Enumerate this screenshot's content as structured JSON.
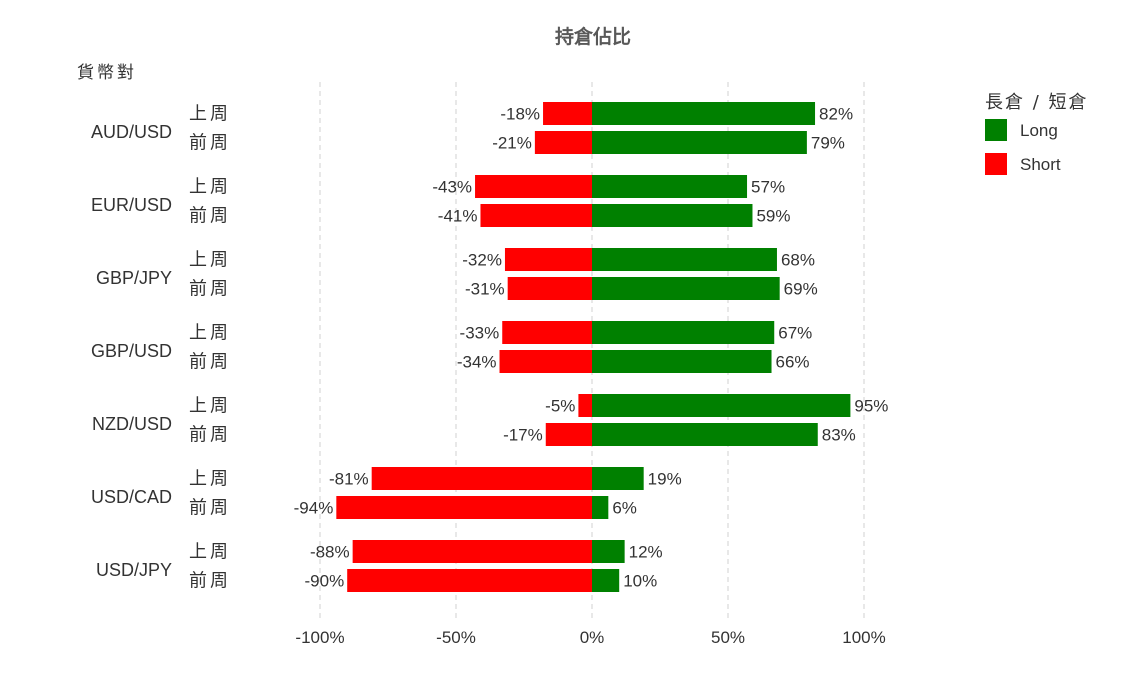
{
  "chart_data": {
    "type": "bar",
    "orientation": "horizontal-diverging",
    "title": "持倉佔比",
    "ylabel": "貨幣對",
    "xlim": [
      -100,
      100
    ],
    "xticks": [
      -100,
      -50,
      0,
      50,
      100
    ],
    "xtick_labels": [
      "-100%",
      "-50%",
      "0%",
      "50%",
      "100%"
    ],
    "legend": {
      "title": "長倉 / 短倉",
      "placement": "top-right",
      "items": [
        {
          "label": "Long",
          "color": "#008000"
        },
        {
          "label": "Short",
          "color": "#ff0000"
        }
      ]
    },
    "grid": true,
    "series": [
      {
        "name": "Long",
        "color": "#008000"
      },
      {
        "name": "Short",
        "color": "#ff0000"
      }
    ],
    "groups": [
      {
        "pair": "AUD/USD",
        "rows": [
          {
            "week": "上周",
            "long": 82,
            "short": -18,
            "long_label": "82%",
            "short_label": "-18%"
          },
          {
            "week": "前周",
            "long": 79,
            "short": -21,
            "long_label": "79%",
            "short_label": "-21%"
          }
        ]
      },
      {
        "pair": "EUR/USD",
        "rows": [
          {
            "week": "上周",
            "long": 57,
            "short": -43,
            "long_label": "57%",
            "short_label": "-43%"
          },
          {
            "week": "前周",
            "long": 59,
            "short": -41,
            "long_label": "59%",
            "short_label": "-41%"
          }
        ]
      },
      {
        "pair": "GBP/JPY",
        "rows": [
          {
            "week": "上周",
            "long": 68,
            "short": -32,
            "long_label": "68%",
            "short_label": "-32%"
          },
          {
            "week": "前周",
            "long": 69,
            "short": -31,
            "long_label": "69%",
            "short_label": "-31%"
          }
        ]
      },
      {
        "pair": "GBP/USD",
        "rows": [
          {
            "week": "上周",
            "long": 67,
            "short": -33,
            "long_label": "67%",
            "short_label": "-33%"
          },
          {
            "week": "前周",
            "long": 66,
            "short": -34,
            "long_label": "66%",
            "short_label": "-34%"
          }
        ]
      },
      {
        "pair": "NZD/USD",
        "rows": [
          {
            "week": "上周",
            "long": 95,
            "short": -5,
            "long_label": "95%",
            "short_label": "-5%"
          },
          {
            "week": "前周",
            "long": 83,
            "short": -17,
            "long_label": "83%",
            "short_label": "-17%"
          }
        ]
      },
      {
        "pair": "USD/CAD",
        "rows": [
          {
            "week": "上周",
            "long": 19,
            "short": -81,
            "long_label": "19%",
            "short_label": "-81%"
          },
          {
            "week": "前周",
            "long": 6,
            "short": -94,
            "long_label": "6%",
            "short_label": "-94%"
          }
        ]
      },
      {
        "pair": "USD/JPY",
        "rows": [
          {
            "week": "上周",
            "long": 12,
            "short": -88,
            "long_label": "12%",
            "short_label": "-88%"
          },
          {
            "week": "前周",
            "long": 10,
            "short": -90,
            "long_label": "10%",
            "short_label": "-90%"
          }
        ]
      }
    ]
  }
}
